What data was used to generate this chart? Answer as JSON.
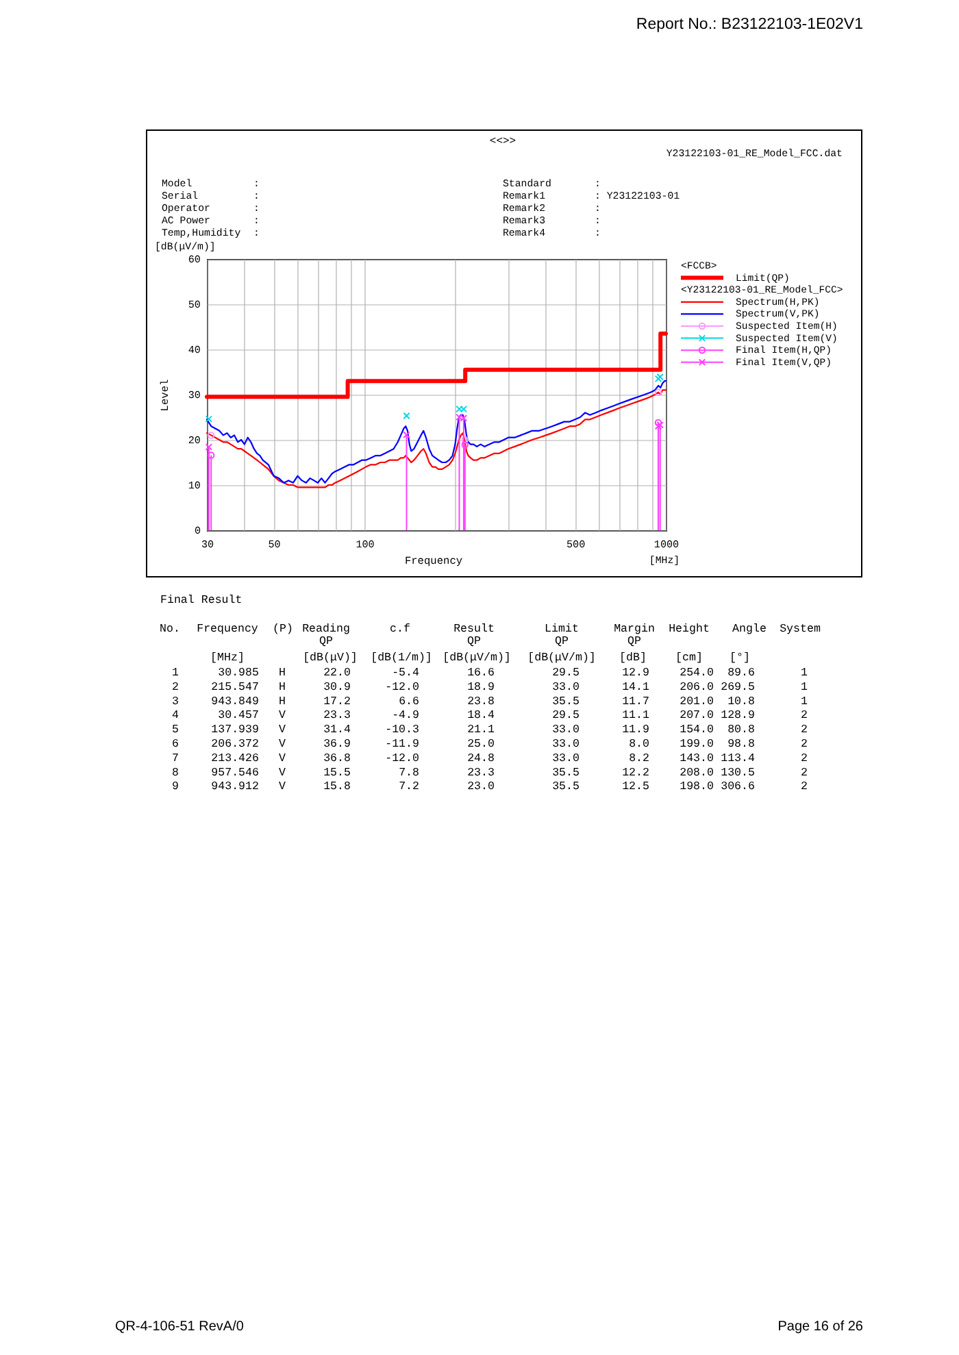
{
  "chart_data": {
    "type": "line",
    "title": "<<>>",
    "xlabel": "Frequency",
    "ylabel": "Level",
    "legend_title": "<FCCB>",
    "legend": "right",
    "grid": true,
    "log": "x",
    "xlim": [
      30,
      1000
    ],
    "xticks": [
      30,
      {
        "value": 40,
        "label": null
      },
      50,
      {
        "value": 60,
        "label": null
      },
      {
        "value": 70,
        "label": null
      },
      {
        "value": 80,
        "label": null
      },
      {
        "value": 90,
        "label": null
      },
      100,
      {
        "value": 200,
        "label": null
      },
      {
        "value": 300,
        "label": null
      },
      {
        "value": 400,
        "label": null
      },
      500,
      {
        "value": 600,
        "label": null
      },
      {
        "value": 700,
        "label": null
      },
      {
        "value": 800,
        "label": null
      },
      {
        "value": 900,
        "label": null
      },
      1000
    ],
    "ylim": [
      0,
      60
    ],
    "yticks": [
      0,
      10,
      20,
      30,
      40,
      50,
      60
    ],
    "x": [
      30,
      31,
      32,
      33,
      34,
      35,
      36,
      37,
      38,
      39,
      40,
      41,
      42,
      43,
      44,
      45,
      46,
      48,
      50,
      52,
      54,
      56,
      58,
      60,
      62,
      64,
      66,
      68,
      70,
      72,
      74,
      76,
      78,
      80,
      83,
      86,
      89,
      92,
      95,
      98,
      101,
      105,
      109,
      113,
      117,
      121,
      125,
      129,
      132,
      135,
      137,
      139,
      141,
      143,
      146,
      150,
      154,
      157,
      160,
      164,
      168,
      172,
      176,
      181,
      186,
      191,
      196,
      200,
      203,
      206,
      209,
      212,
      215,
      218,
      221,
      225,
      230,
      236,
      243,
      250,
      260,
      270,
      280,
      290,
      300,
      315,
      330,
      345,
      360,
      380,
      400,
      420,
      440,
      460,
      480,
      500,
      520,
      540,
      560,
      585,
      610,
      640,
      670,
      700,
      735,
      770,
      810,
      850,
      890,
      920,
      945,
      960,
      975,
      990,
      1000
    ],
    "series": [
      {
        "name": "Limit(QP)",
        "type": "step",
        "color": "#ff0000",
        "x": [
          30,
          88,
          216,
          960,
          1000
        ],
        "values": [
          29.5,
          33.0,
          35.5,
          43.5,
          43.5
        ]
      },
      {
        "name": "Spectrum(H,PK)",
        "color": "#ff0000",
        "values": [
          21.5,
          21,
          20.5,
          20,
          19.5,
          19.5,
          19,
          18.5,
          18,
          18,
          17.5,
          17,
          16.5,
          16,
          15.5,
          15,
          14.5,
          13.5,
          12,
          11,
          10.5,
          10,
          10,
          9.5,
          9.5,
          9.5,
          9.5,
          9.5,
          9.5,
          9.5,
          9.5,
          10,
          10,
          10.5,
          11,
          11.5,
          12,
          12.5,
          13,
          13.5,
          14,
          14.5,
          14.5,
          15,
          15,
          15.5,
          15.5,
          15.5,
          16,
          16,
          16.5,
          16,
          15.5,
          15,
          15.5,
          16.5,
          17.5,
          18,
          17,
          15,
          14,
          14,
          13.5,
          13.5,
          14,
          14.5,
          15.5,
          17,
          18.5,
          20,
          21,
          21.5,
          20,
          17.5,
          16.5,
          16,
          15.5,
          15.5,
          16,
          16,
          16.5,
          17,
          17,
          17.5,
          18,
          18.5,
          19,
          19.5,
          20,
          20.5,
          21,
          21.5,
          22,
          22.5,
          23,
          23,
          23.5,
          24.5,
          24.5,
          25,
          25.5,
          26,
          26.5,
          27,
          27.5,
          28,
          28.5,
          29,
          29.5,
          30,
          30.5,
          30,
          31,
          31,
          31
        ]
      },
      {
        "name": "Spectrum(V,PK)",
        "color": "#0000ff",
        "values": [
          24.5,
          23,
          22.5,
          22,
          21,
          21.5,
          20.5,
          21,
          19.5,
          20,
          19,
          20.5,
          19.5,
          18,
          17,
          16.5,
          15.5,
          14.5,
          12,
          11.5,
          10.5,
          11,
          10.5,
          12,
          11,
          10.5,
          11.5,
          11,
          10.5,
          11.5,
          10.5,
          11.5,
          12.5,
          13,
          13.5,
          14,
          14.5,
          14.5,
          15,
          15.5,
          15.5,
          16,
          16.5,
          16.5,
          17,
          17.5,
          18,
          19.5,
          21,
          22.5,
          23,
          22,
          19,
          17.5,
          18,
          19.5,
          21,
          22,
          20.5,
          18,
          16.5,
          16,
          15.5,
          15,
          15,
          15.5,
          16.5,
          19,
          22.5,
          25,
          25.5,
          25.5,
          24,
          21,
          19.5,
          19,
          19,
          18.5,
          19,
          18.5,
          19,
          19.5,
          19.5,
          20,
          20.5,
          20.5,
          21,
          21.5,
          22,
          22,
          22.5,
          23,
          23.5,
          24,
          24,
          24.5,
          25,
          26,
          25.5,
          26,
          26.5,
          27,
          27.5,
          28,
          28.5,
          29,
          29.5,
          30,
          30.5,
          31,
          32,
          31.5,
          32.5,
          33,
          33
        ]
      },
      {
        "name": "Suspected Item(H)",
        "type": "scatter",
        "marker": "circle",
        "color": "#ff99ff",
        "x": [
          30.985,
          215.547,
          943.849
        ],
        "values": [
          21.0,
          20.0,
          30.5
        ]
      },
      {
        "name": "Suspected Item(V)",
        "type": "scatter",
        "marker": "cross",
        "color": "#00d8e0",
        "x": [
          30.457,
          137.939,
          206.372,
          213.426,
          957.546,
          943.912
        ],
        "values": [
          24.6,
          25.3,
          26.8,
          26.8,
          33.9,
          33.5
        ]
      },
      {
        "name": "Final Item(H,QP)",
        "type": "lollipop",
        "marker": "circle",
        "color": "#ff40ff",
        "x": [
          30.985,
          215.547,
          943.849
        ],
        "values": [
          16.6,
          18.9,
          23.8
        ]
      },
      {
        "name": "Final Item(V,QP)",
        "type": "lollipop",
        "marker": "cross",
        "color": "#ff40ff",
        "x": [
          30.457,
          137.939,
          206.372,
          213.426,
          957.546,
          943.912
        ],
        "values": [
          18.4,
          21.1,
          25.0,
          24.8,
          23.3,
          23.0
        ]
      }
    ],
    "annotations": [
      "Report No.: B23122103-1E02V1",
      "Y23122103-01_RE_Model_FCC.dat",
      "[dB(μV/m)]",
      "[MHz]",
      "<Y23122103-01_RE_Model_FCC>",
      "Model :",
      "Serial :",
      "Operator :",
      "AC Power :",
      "Temp,Humidity :",
      "Standard :",
      "Remark1 : Y23122103-01",
      "Remark2 :",
      "Remark3 :",
      "Remark4 :",
      "Final Result",
      "No. Frequency (P) Reading c.f Result Limit Margin Height Angle System",
      "QP QP QP QP",
      "[MHz] [dB(μV)] [dB(1/m)] [dB(μV/m)] [dB(μV/m)] [dB] [cm] [°]",
      "1 30.985 H 22.0 -5.4 16.6 29.5 12.9 254.0 89.6 1",
      "2 215.547 H 30.9 -12.0 18.9 33.0 14.1 206.0 269.5 1",
      "3 943.849 H 17.2 6.6 23.8 35.5 11.7 201.0 10.8 1",
      "4 30.457 V 23.3 -4.9 18.4 29.5 11.1 207.0 128.9 2",
      "5 137.939 V 31.4 -10.3 21.1 33.0 11.9 154.0 80.8 2",
      "6 206.372 V 36.9 -11.9 25.0 33.0 8.0 199.0 98.8 2",
      "7 213.426 V 36.8 -12.0 24.8 33.0 8.2 143.0 113.4 2",
      "8 957.546 V 15.5 7.8 23.3 35.5 12.2 208.0 130.5 2",
      "9 943.912 V 15.8 7.2 23.0 35.5 12.5 198.0 306.6 2",
      "QR-4-106-51 RevA/0",
      "Page 16 of 26"
    ]
  }
}
